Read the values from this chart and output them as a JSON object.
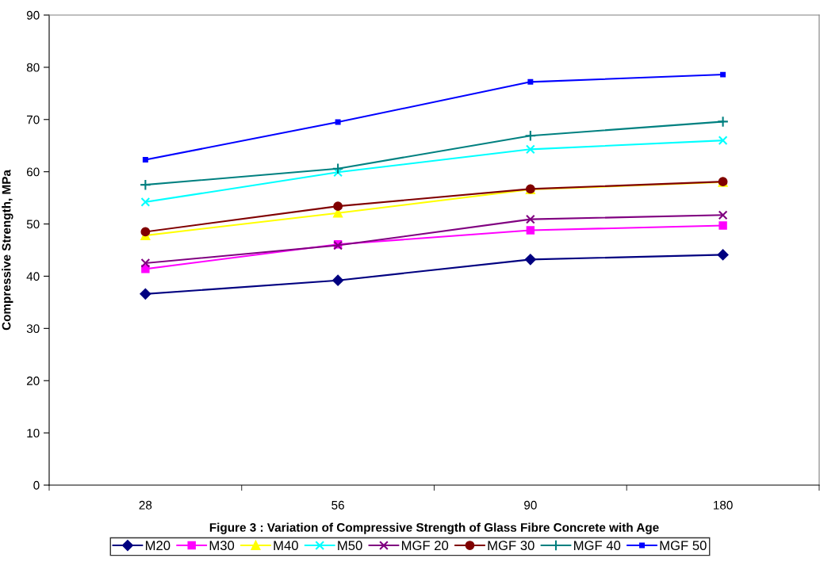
{
  "chart_data": {
    "type": "line",
    "xlabel": "Figure 3 : Variation of Compressive Strength of Glass Fibre Concrete with Age",
    "ylabel": "Compressive Strength, MPa",
    "categories": [
      "28",
      "56",
      "90",
      "180"
    ],
    "series": [
      {
        "name": "M20",
        "color": "#000080",
        "marker": "diamond",
        "values": [
          36.6,
          39.2,
          43.2,
          44.1
        ]
      },
      {
        "name": "M30",
        "color": "#ff00ff",
        "marker": "square",
        "values": [
          41.4,
          46.1,
          48.8,
          49.7
        ]
      },
      {
        "name": "M40",
        "color": "#ffff00",
        "marker": "triangle",
        "values": [
          47.8,
          52.1,
          56.6,
          58.0
        ]
      },
      {
        "name": "M50",
        "color": "#00ffff",
        "marker": "cross",
        "values": [
          54.2,
          59.9,
          64.3,
          66.0
        ]
      },
      {
        "name": "MGF 20",
        "color": "#800080",
        "marker": "cross",
        "values": [
          42.5,
          45.9,
          50.9,
          51.7
        ]
      },
      {
        "name": "MGF 30",
        "color": "#800000",
        "marker": "circle",
        "values": [
          48.5,
          53.4,
          56.7,
          58.1
        ]
      },
      {
        "name": "MGF 40",
        "color": "#008080",
        "marker": "plus",
        "values": [
          57.5,
          60.6,
          66.9,
          69.6
        ]
      },
      {
        "name": "MGF 50",
        "color": "#0000ff",
        "marker": "square",
        "values": [
          62.3,
          69.5,
          77.2,
          78.6
        ]
      }
    ],
    "ylim": [
      0,
      90
    ],
    "yticks": [
      0,
      10,
      20,
      30,
      40,
      50,
      60,
      70,
      80,
      90
    ],
    "grid": false,
    "legend": "bottom",
    "line_style": "solid"
  }
}
